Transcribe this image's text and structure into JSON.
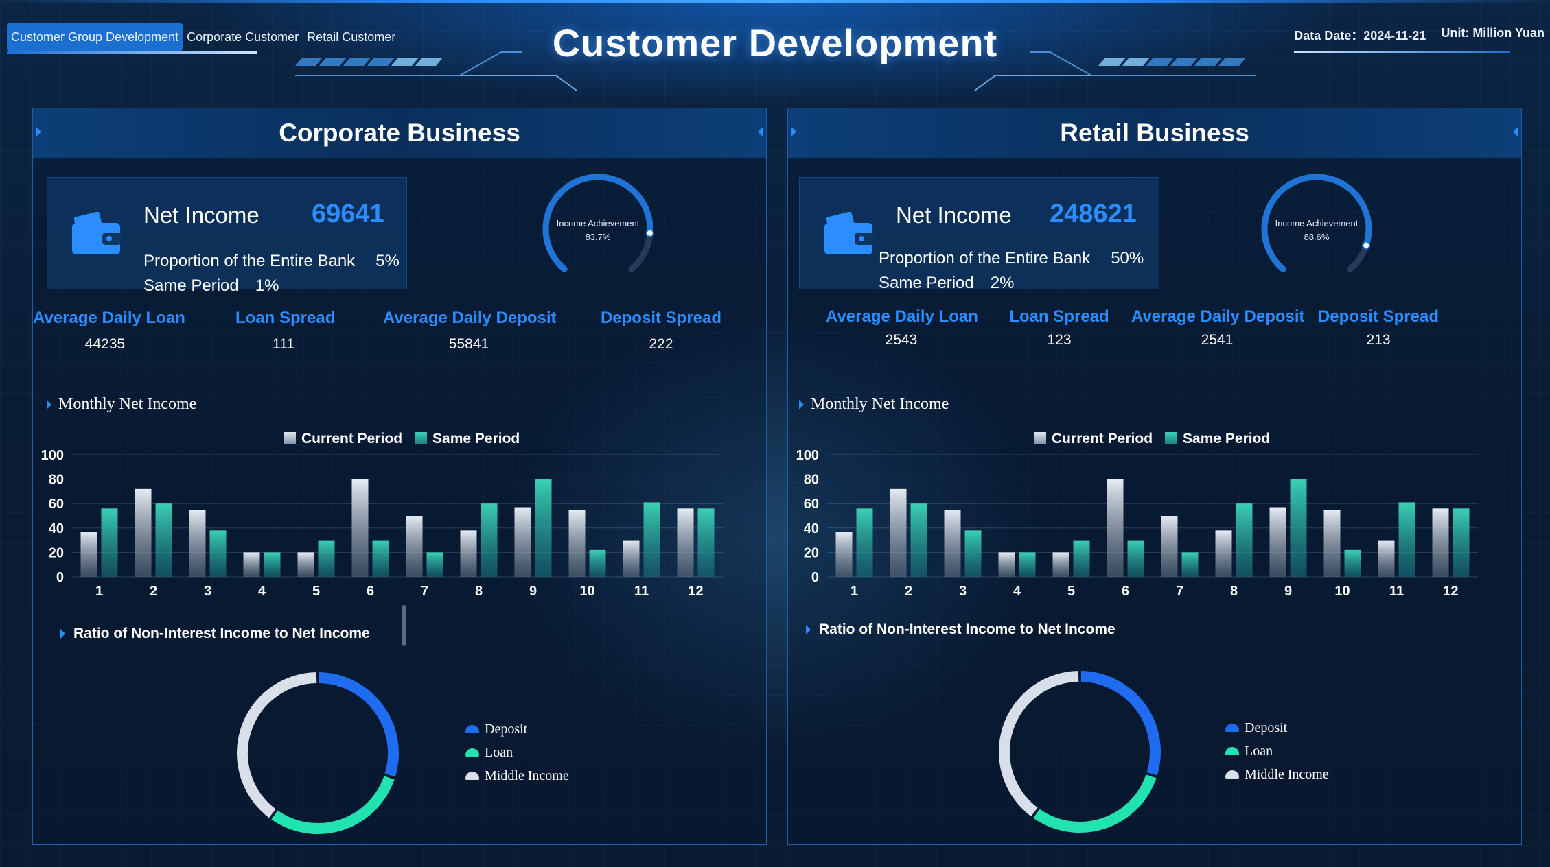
{
  "header": {
    "tabs": [
      {
        "label": "Customer Group Development",
        "active": true
      },
      {
        "label": "Corporate Customer",
        "active": false
      },
      {
        "label": "Retail Customer",
        "active": false
      }
    ],
    "title": "Customer Development",
    "data_date_label": "Data Date：",
    "data_date": "2024-11-21",
    "unit": "Unit: Million Yuan"
  },
  "colors": {
    "accent": "#2b8dff",
    "current_period": "#c8d4e2",
    "same_period": "#3ad0b4",
    "deposit": "#1f6cf0",
    "loan": "#22e3b0",
    "middle_income": "#d9dfe8"
  },
  "panels": [
    {
      "title": "Corporate Business",
      "net_income_label": "Net Income",
      "net_income": "69641",
      "proportion_label": "Proportion of the Entire Bank",
      "proportion": "5%",
      "same_period_label": "Same Period",
      "same_period": "1%",
      "gauge": {
        "label": "Income Achievement",
        "value_text": "83.7%",
        "value": 0.837
      },
      "kpis": [
        {
          "label": "Average Daily Loan",
          "value": "44235"
        },
        {
          "label": "Loan Spread",
          "value": "111"
        },
        {
          "label": "Average Daily Deposit",
          "value": "55841"
        },
        {
          "label": "Deposit Spread",
          "value": "222"
        }
      ],
      "monthly_title": "Monthly Net Income",
      "ratio_title": "Ratio of Non-Interest Income to Net Income",
      "donut_legend": [
        "Deposit",
        "Loan",
        "Middle Income"
      ]
    },
    {
      "title": "Retail Business",
      "net_income_label": "Net Income",
      "net_income": "248621",
      "proportion_label": "Proportion of the Entire Bank",
      "proportion": "50%",
      "same_period_label": "Same Period",
      "same_period": "2%",
      "gauge": {
        "label": "Income Achievement",
        "value_text": "88.6%",
        "value": 0.886
      },
      "kpis": [
        {
          "label": "Average Daily Loan",
          "value": "2543"
        },
        {
          "label": "Loan Spread",
          "value": "123"
        },
        {
          "label": "Average Daily Deposit",
          "value": "2541"
        },
        {
          "label": "Deposit Spread",
          "value": "213"
        }
      ],
      "monthly_title": "Monthly Net Income",
      "ratio_title": "Ratio of Non-Interest Income to Net Income",
      "donut_legend": [
        "Deposit",
        "Loan",
        "Middle Income"
      ]
    }
  ],
  "chart_data": [
    {
      "type": "bar",
      "categories": [
        "1",
        "2",
        "3",
        "4",
        "5",
        "6",
        "7",
        "8",
        "9",
        "10",
        "11",
        "12"
      ],
      "series": [
        {
          "name": "Current Period",
          "values": [
            37,
            72,
            55,
            20,
            20,
            80,
            50,
            38,
            57,
            55,
            30,
            56
          ]
        },
        {
          "name": "Same Period",
          "values": [
            56,
            60,
            38,
            20,
            30,
            30,
            20,
            60,
            80,
            22,
            61,
            56
          ]
        }
      ],
      "ylim": [
        0,
        100
      ],
      "yticks": [
        "100",
        "80",
        "60",
        "40",
        "20",
        "0"
      ],
      "legend": "top-center",
      "grid": true
    },
    {
      "type": "bar",
      "categories": [
        "1",
        "2",
        "3",
        "4",
        "5",
        "6",
        "7",
        "8",
        "9",
        "10",
        "11",
        "12"
      ],
      "series": [
        {
          "name": "Current Period",
          "values": [
            37,
            72,
            55,
            20,
            20,
            80,
            50,
            38,
            57,
            55,
            30,
            56
          ]
        },
        {
          "name": "Same Period",
          "values": [
            56,
            60,
            38,
            20,
            30,
            30,
            20,
            60,
            80,
            22,
            61,
            56
          ]
        }
      ],
      "ylim": [
        0,
        100
      ],
      "yticks": [
        "100",
        "80",
        "60",
        "40",
        "20",
        "0"
      ],
      "legend": "top-center",
      "grid": true
    },
    {
      "type": "pie",
      "categories": [
        "Deposit",
        "Loan",
        "Middle Income"
      ],
      "values": [
        0.3,
        0.3,
        0.4
      ]
    },
    {
      "type": "pie",
      "categories": [
        "Deposit",
        "Loan",
        "Middle Income"
      ],
      "values": [
        0.3,
        0.3,
        0.4
      ]
    }
  ]
}
